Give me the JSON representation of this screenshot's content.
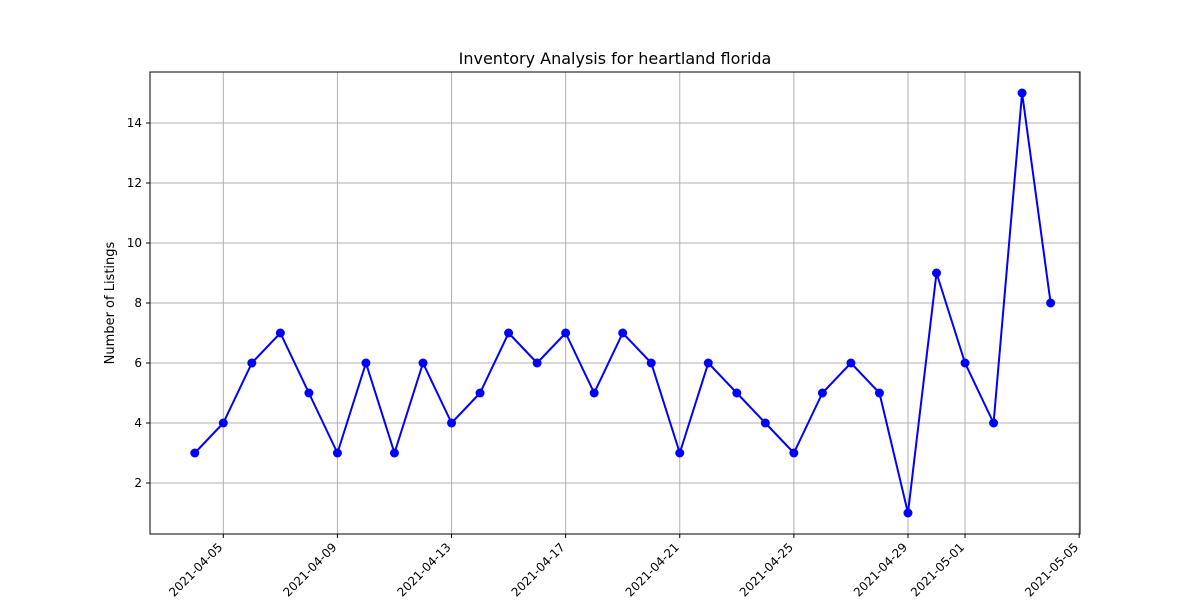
{
  "chart_data": {
    "type": "line",
    "title": "Inventory Analysis for heartland florida",
    "xlabel": "",
    "ylabel": "Number of Listings",
    "x": [
      "2021-04-04",
      "2021-04-05",
      "2021-04-06",
      "2021-04-07",
      "2021-04-08",
      "2021-04-09",
      "2021-04-10",
      "2021-04-11",
      "2021-04-12",
      "2021-04-13",
      "2021-04-14",
      "2021-04-15",
      "2021-04-16",
      "2021-04-17",
      "2021-04-18",
      "2021-04-19",
      "2021-04-20",
      "2021-04-21",
      "2021-04-22",
      "2021-04-23",
      "2021-04-24",
      "2021-04-25",
      "2021-04-26",
      "2021-04-27",
      "2021-04-28",
      "2021-04-29",
      "2021-04-30",
      "2021-05-01",
      "2021-05-02",
      "2021-05-03",
      "2021-05-04"
    ],
    "series": [
      {
        "color": "#0000ff",
        "values": [
          3,
          4,
          6,
          7,
          5,
          3,
          6,
          3,
          6,
          4,
          5,
          7,
          6,
          7,
          5,
          7,
          6,
          3,
          6,
          5,
          4,
          3,
          5,
          6,
          5,
          1,
          9,
          6,
          4,
          15,
          8
        ]
      }
    ],
    "xticks": [
      "2021-04-05",
      "2021-04-09",
      "2021-04-13",
      "2021-04-17",
      "2021-04-21",
      "2021-04-25",
      "2021-04-29",
      "2021-05-01",
      "2021-05-05"
    ],
    "yticks": [
      2,
      4,
      6,
      8,
      10,
      12,
      14
    ],
    "xlim": [
      "2021-04-02",
      "2021-05-05"
    ],
    "ylim": [
      0.3,
      15.7
    ],
    "grid": true,
    "marker": "circle"
  }
}
